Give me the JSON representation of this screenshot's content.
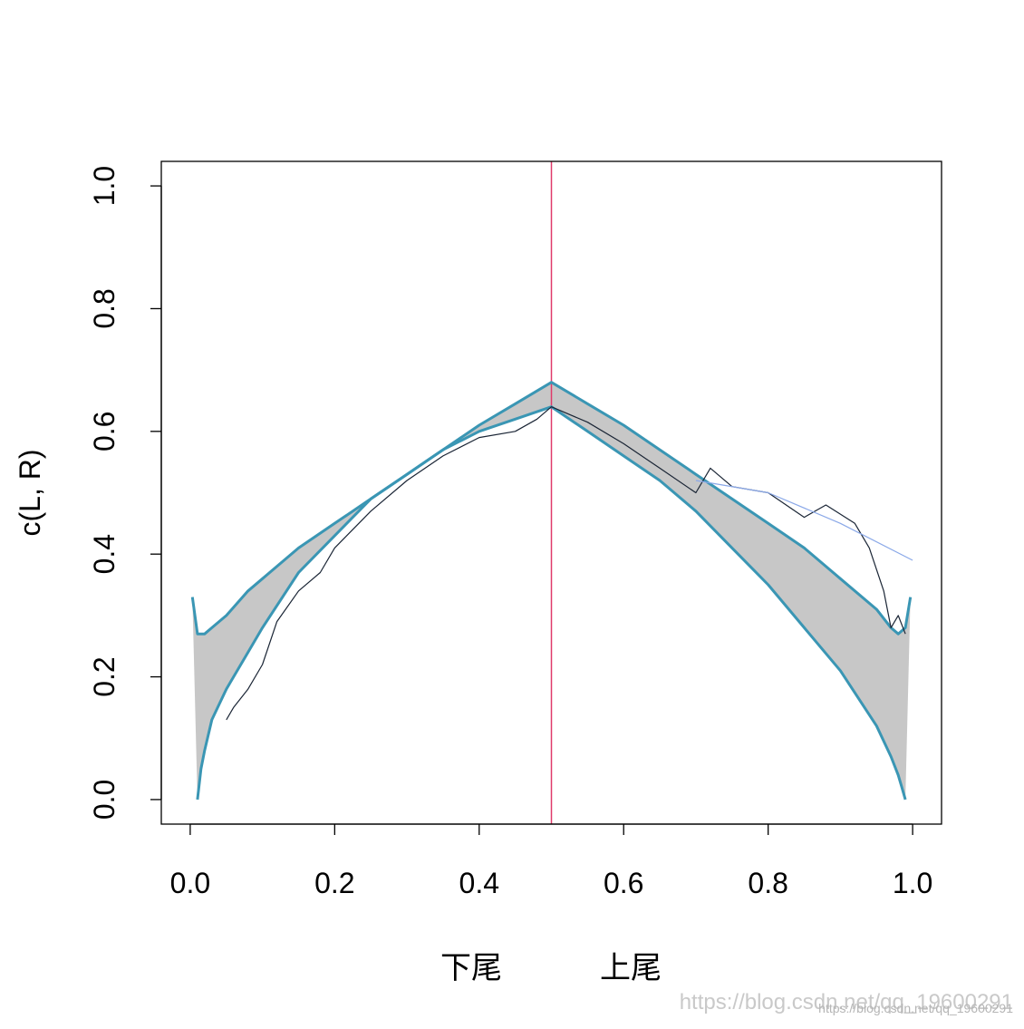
{
  "chart_data": {
    "type": "line",
    "xlim": [
      -0.04,
      1.04
    ],
    "ylim": [
      -0.04,
      1.04
    ],
    "x_ticks": [
      "0.0",
      "0.2",
      "0.4",
      "0.6",
      "0.8",
      "1.0"
    ],
    "y_ticks": [
      "0.0",
      "0.2",
      "0.4",
      "0.6",
      "0.8",
      "1.0"
    ],
    "ylabel": "c(L, R)",
    "x_group_labels": [
      "下尾",
      "上尾"
    ],
    "split_line_x": 0.5,
    "grid": false,
    "legend": "none",
    "series": [
      {
        "x": [
          0.003,
          0.01,
          0.02,
          0.03,
          0.05,
          0.08,
          0.1,
          0.15,
          0.2,
          0.25,
          0.3,
          0.35,
          0.4,
          0.45,
          0.5,
          0.55,
          0.6,
          0.65,
          0.7,
          0.75,
          0.8,
          0.85,
          0.9,
          0.95,
          0.97,
          0.98,
          0.99,
          0.997
        ],
        "y": [
          0.33,
          0.27,
          0.27,
          0.28,
          0.3,
          0.34,
          0.36,
          0.41,
          0.45,
          0.49,
          0.53,
          0.57,
          0.61,
          0.645,
          0.68,
          0.645,
          0.61,
          0.57,
          0.53,
          0.49,
          0.45,
          0.41,
          0.36,
          0.31,
          0.28,
          0.27,
          0.28,
          0.33
        ]
      },
      {
        "x": [
          0.01,
          0.015,
          0.02,
          0.03,
          0.05,
          0.08,
          0.1,
          0.15,
          0.2,
          0.25,
          0.3,
          0.35,
          0.4,
          0.45,
          0.5,
          0.55,
          0.6,
          0.65,
          0.7,
          0.75,
          0.8,
          0.85,
          0.9,
          0.95,
          0.97,
          0.98,
          0.985,
          0.99
        ],
        "y": [
          0.0,
          0.05,
          0.08,
          0.13,
          0.18,
          0.24,
          0.28,
          0.37,
          0.43,
          0.49,
          0.53,
          0.57,
          0.6,
          0.62,
          0.64,
          0.6,
          0.56,
          0.52,
          0.47,
          0.41,
          0.35,
          0.28,
          0.21,
          0.12,
          0.07,
          0.04,
          0.02,
          0.0
        ]
      },
      {
        "x": [
          0.05,
          0.06,
          0.08,
          0.1,
          0.12,
          0.15,
          0.18,
          0.2,
          0.25,
          0.3,
          0.35,
          0.4,
          0.45,
          0.48,
          0.5,
          0.55,
          0.6,
          0.65,
          0.7,
          0.72,
          0.75,
          0.8,
          0.85,
          0.88,
          0.92,
          0.94,
          0.96,
          0.97,
          0.98,
          0.99
        ],
        "y": [
          0.13,
          0.15,
          0.18,
          0.22,
          0.29,
          0.34,
          0.37,
          0.41,
          0.47,
          0.52,
          0.56,
          0.59,
          0.6,
          0.62,
          0.64,
          0.615,
          0.58,
          0.54,
          0.5,
          0.54,
          0.51,
          0.5,
          0.46,
          0.48,
          0.45,
          0.41,
          0.34,
          0.28,
          0.3,
          0.27
        ]
      },
      {
        "x": [
          0.7,
          0.8,
          0.9,
          1.0
        ],
        "y": [
          0.52,
          0.5,
          0.45,
          0.39
        ]
      }
    ]
  },
  "watermark": {
    "large": "https://blog.csdn.net/qq_19600291",
    "small": "https://blog.csdn.net/qq_19600291"
  },
  "colors": {
    "band": "#bdbdbd",
    "envelope": "#3a96b4",
    "observed": "#1a2535",
    "reference": "#8aa8e8",
    "split": "#e03a6a"
  }
}
